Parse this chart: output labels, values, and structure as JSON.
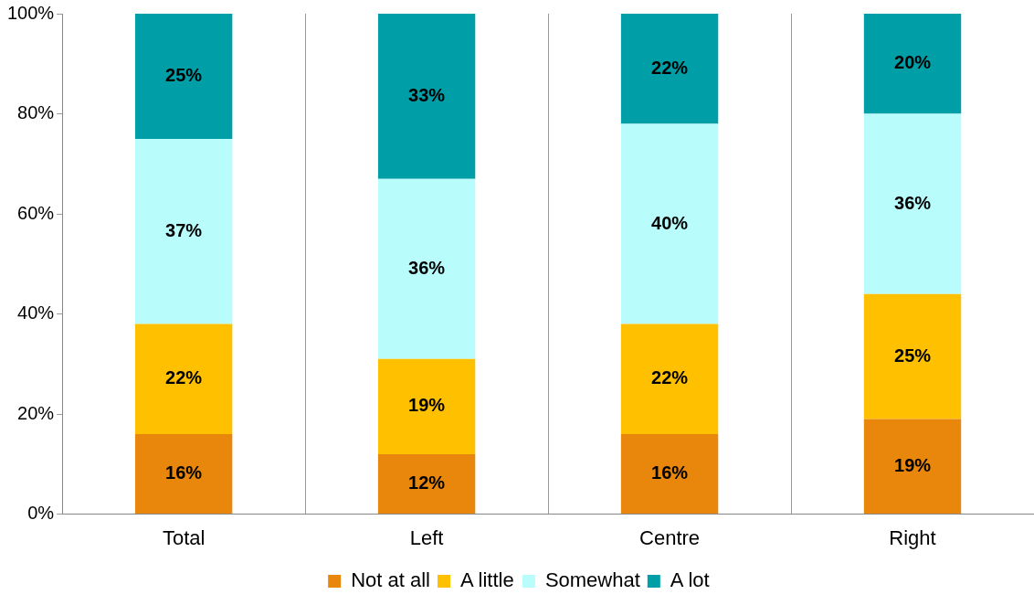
{
  "chart_data": {
    "type": "bar",
    "stacked": true,
    "categories": [
      "Total",
      "Left",
      "Centre",
      "Right"
    ],
    "series": [
      {
        "name": "Not at all",
        "color": "#e8870c",
        "values": [
          16,
          12,
          16,
          19
        ],
        "value_labels": [
          "16%",
          "12%",
          "16%",
          "19%"
        ]
      },
      {
        "name": "A little",
        "color": "#ffc000",
        "values": [
          22,
          19,
          22,
          25
        ],
        "value_labels": [
          "22%",
          "19%",
          "22%",
          "25%"
        ]
      },
      {
        "name": "Somewhat",
        "color": "#b9fcfc",
        "values": [
          37,
          36,
          40,
          36
        ],
        "value_labels": [
          "37%",
          "36%",
          "40%",
          "36%"
        ]
      },
      {
        "name": "A lot",
        "color": "#009ea7",
        "values": [
          25,
          33,
          22,
          20
        ],
        "value_labels": [
          "25%",
          "33%",
          "22%",
          "20%"
        ]
      }
    ],
    "ylim": [
      0,
      100
    ],
    "yticks": [
      {
        "value": 0,
        "label": "0%"
      },
      {
        "value": 20,
        "label": "20%"
      },
      {
        "value": 40,
        "label": "40%"
      },
      {
        "value": 60,
        "label": "60%"
      },
      {
        "value": 80,
        "label": "80%"
      },
      {
        "value": 100,
        "label": "100%"
      }
    ],
    "grid": "x",
    "legend": "bottom"
  }
}
